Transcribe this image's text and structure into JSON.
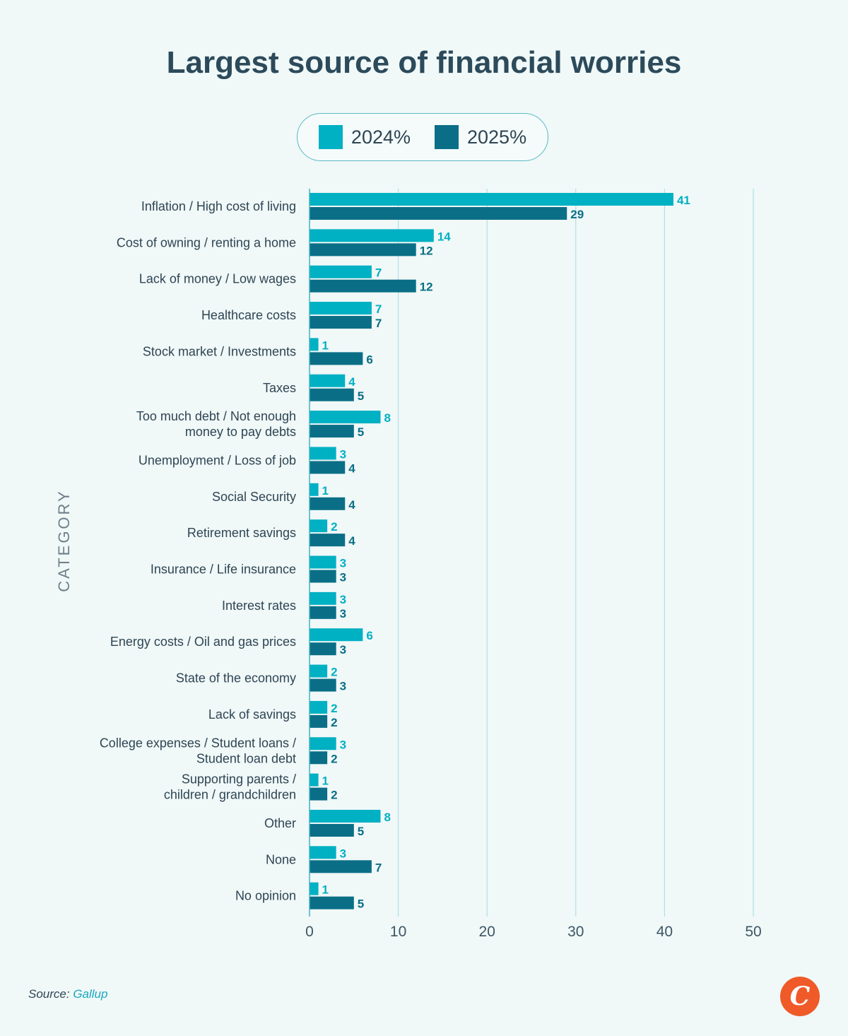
{
  "chart_data": {
    "type": "bar",
    "orientation": "horizontal",
    "title": "Largest source of financial worries",
    "ylabel": "CATEGORY",
    "xlabel": "",
    "xlim": [
      0,
      50
    ],
    "xticks": [
      0,
      10,
      20,
      30,
      40,
      50
    ],
    "grid": true,
    "legend_position": "top-center",
    "categories": [
      [
        "Inflation / High cost of living"
      ],
      [
        "Cost of owning / renting a home"
      ],
      [
        "Lack of money / Low wages"
      ],
      [
        "Healthcare costs"
      ],
      [
        "Stock market / Investments"
      ],
      [
        "Taxes"
      ],
      [
        "Too much debt / Not enough",
        "money to pay debts"
      ],
      [
        "Unemployment / Loss of job"
      ],
      [
        "Social Security"
      ],
      [
        "Retirement savings"
      ],
      [
        "Insurance / Life insurance"
      ],
      [
        "Interest rates"
      ],
      [
        "Energy costs / Oil and gas prices"
      ],
      [
        "State of the economy"
      ],
      [
        "Lack of savings"
      ],
      [
        "College expenses / Student loans /",
        "Student loan debt"
      ],
      [
        "Supporting parents /",
        "children / grandchildren"
      ],
      [
        "Other"
      ],
      [
        "None"
      ],
      [
        "No opinion"
      ]
    ],
    "series": [
      {
        "name": "2024%",
        "color": "#00b0c3",
        "values": [
          41,
          14,
          7,
          7,
          1,
          4,
          8,
          3,
          1,
          2,
          3,
          3,
          6,
          2,
          2,
          3,
          1,
          8,
          3,
          1
        ]
      },
      {
        "name": "2025%",
        "color": "#0a6f86",
        "values": [
          29,
          12,
          12,
          7,
          6,
          5,
          5,
          4,
          4,
          4,
          3,
          3,
          3,
          3,
          2,
          2,
          2,
          5,
          7,
          5
        ]
      }
    ]
  },
  "footer": {
    "source_prefix": "Source: ",
    "source_name": "Gallup",
    "logo_letter": "C"
  },
  "colors": {
    "grid": "#a9dbe0",
    "axis": "#3fb3c1"
  }
}
